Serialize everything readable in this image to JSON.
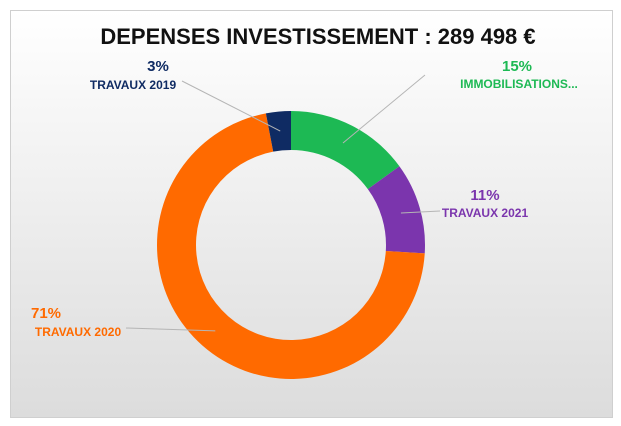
{
  "chart_data": {
    "type": "pie",
    "title": "DEPENSES INVESTISSEMENT : 289 498 €",
    "categories": [
      "IMMOBILISATIONS...",
      "TRAVAUX 2021",
      "TRAVAUX 2020",
      "TRAVAUX 2019"
    ],
    "values": [
      15,
      11,
      71,
      3
    ],
    "value_labels": [
      "15%",
      "11%",
      "71%",
      "3%"
    ],
    "colors": [
      "#1db954",
      "#7b35ad",
      "#ff6a00",
      "#0f2b63"
    ],
    "donut": true
  }
}
